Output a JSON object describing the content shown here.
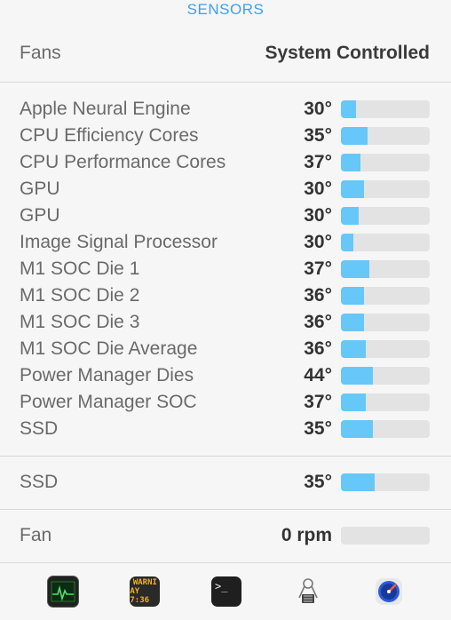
{
  "header": {
    "title": "SENSORS"
  },
  "fans": {
    "label": "Fans",
    "value": "System Controlled"
  },
  "sensors": [
    {
      "label": "Apple Neural Engine",
      "temp": "30°",
      "level": 0.17
    },
    {
      "label": "CPU Efficiency Cores",
      "temp": "35°",
      "level": 0.3
    },
    {
      "label": "CPU Performance Cores",
      "temp": "37°",
      "level": 0.22
    },
    {
      "label": "GPU",
      "temp": "30°",
      "level": 0.26
    },
    {
      "label": "GPU",
      "temp": "30°",
      "level": 0.2
    },
    {
      "label": "Image Signal Processor",
      "temp": "30°",
      "level": 0.14
    },
    {
      "label": "M1 SOC Die 1",
      "temp": "37°",
      "level": 0.32
    },
    {
      "label": "M1 SOC Die 2",
      "temp": "36°",
      "level": 0.26
    },
    {
      "label": "M1 SOC Die 3",
      "temp": "36°",
      "level": 0.26
    },
    {
      "label": "M1 SOC Die Average",
      "temp": "36°",
      "level": 0.28
    },
    {
      "label": "Power Manager Dies",
      "temp": "44°",
      "level": 0.36
    },
    {
      "label": "Power Manager SOC",
      "temp": "37°",
      "level": 0.28
    },
    {
      "label": "SSD",
      "temp": "35°",
      "level": 0.36
    }
  ],
  "ssd": {
    "label": "SSD",
    "temp": "35°",
    "level": 0.38
  },
  "fan": {
    "label": "Fan",
    "value": "0 rpm",
    "level": 0
  },
  "dock": {
    "console_text_1": "WARNI",
    "console_text_2": "AY 7:36",
    "terminal_text": ">_"
  },
  "colors": {
    "accent": "#3f9ff0",
    "bar_fill": "#66c7f8",
    "bar_track": "#e3e3e3"
  }
}
